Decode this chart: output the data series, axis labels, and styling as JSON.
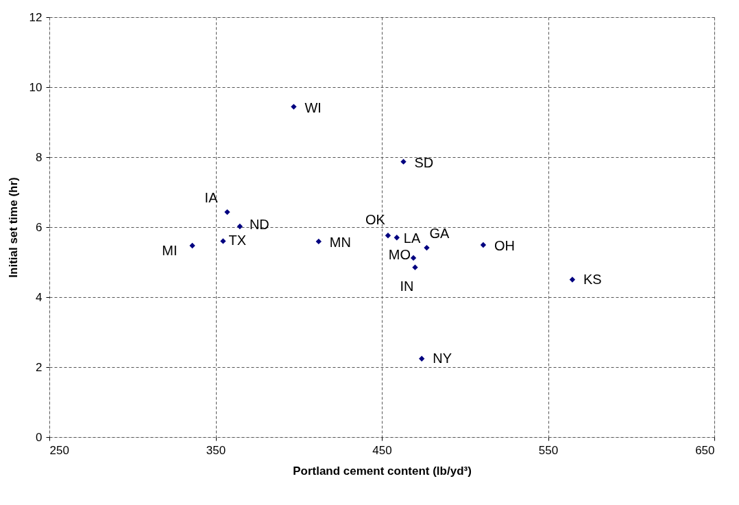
{
  "chart_data": {
    "type": "scatter",
    "xlabel": "Portland cement content (lb/yd³)",
    "ylabel": "Initial set time (hr)",
    "x": [
      336,
      354.5,
      357,
      364.6,
      397,
      412,
      453.7,
      459,
      463,
      469,
      470,
      477,
      511,
      474,
      564.6
    ],
    "series": [
      {
        "color": "#000080",
        "values": [
          5.47,
          5.6,
          6.43,
          6.02,
          9.44,
          5.59,
          5.76,
          5.7,
          7.87,
          5.12,
          4.85,
          5.41,
          5.49,
          2.24,
          4.5
        ]
      }
    ],
    "xlim": [
      250,
      650
    ],
    "xticks": [
      250,
      350,
      450,
      550,
      650
    ],
    "ylim": [
      0,
      12
    ],
    "yticks": [
      0,
      2,
      4,
      6,
      8,
      10,
      12
    ],
    "grid": true,
    "marker": "diamond",
    "annotations": [
      {
        "text": "MI",
        "x": 336,
        "y": 5.47
      },
      {
        "text": "TX",
        "x": 354.5,
        "y": 5.6
      },
      {
        "text": "IA",
        "x": 357,
        "y": 6.43
      },
      {
        "text": "ND",
        "x": 364.6,
        "y": 6.02
      },
      {
        "text": "WI",
        "x": 397,
        "y": 9.44
      },
      {
        "text": "MN",
        "x": 412,
        "y": 5.59
      },
      {
        "text": "OK",
        "x": 453.7,
        "y": 5.76
      },
      {
        "text": "LA",
        "x": 459,
        "y": 5.7
      },
      {
        "text": "SD",
        "x": 463,
        "y": 7.87
      },
      {
        "text": "MO",
        "x": 469,
        "y": 5.12
      },
      {
        "text": "IN",
        "x": 470,
        "y": 4.85
      },
      {
        "text": "GA",
        "x": 477,
        "y": 5.41
      },
      {
        "text": "OH",
        "x": 511,
        "y": 5.49
      },
      {
        "text": "NY",
        "x": 474,
        "y": 2.24
      },
      {
        "text": "KS",
        "x": 564.6,
        "y": 4.5
      }
    ]
  }
}
